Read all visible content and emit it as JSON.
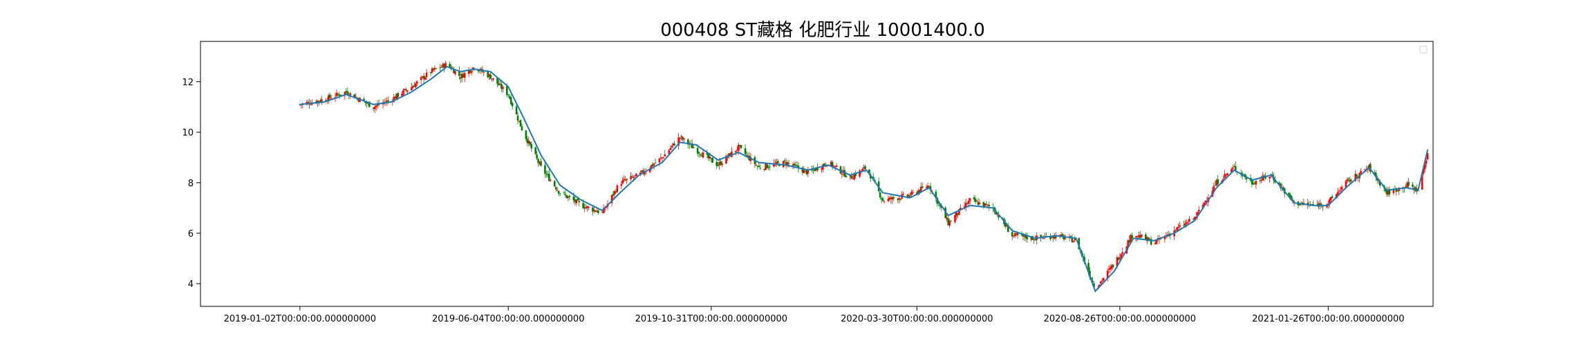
{
  "chart_data": {
    "type": "candlestick",
    "title": "000408 ST藏格 化肥行业 10001400.0",
    "xlabel": "",
    "ylabel": "",
    "ylim": [
      3.1,
      13.6
    ],
    "x_range": [
      "2018-10-21",
      "2021-04-13"
    ],
    "grid": false,
    "legend": "top-right (empty)",
    "colors": {
      "up": "#ff0000",
      "down": "#008000",
      "line": "#1f77b4",
      "axis": "#000000"
    },
    "x_ticks": [
      {
        "date": "2019-01-02",
        "label": "2019-01-02T00:00:00.000000000"
      },
      {
        "date": "2019-06-04",
        "label": "2019-06-04T00:00:00.000000000"
      },
      {
        "date": "2019-10-31",
        "label": "2019-10-31T00:00:00.000000000"
      },
      {
        "date": "2020-03-30",
        "label": "2020-03-30T00:00:00.000000000"
      },
      {
        "date": "2020-08-26",
        "label": "2020-08-26T00:00:00.000000000"
      },
      {
        "date": "2021-01-26",
        "label": "2021-01-26T00:00:00.000000000"
      }
    ],
    "y_ticks": [
      4,
      6,
      8,
      10,
      12
    ],
    "series": [
      {
        "kind": "close_trend",
        "points": [
          [
            "2019-01-02",
            11.1
          ],
          [
            "2019-01-20",
            11.3
          ],
          [
            "2019-02-05",
            11.6
          ],
          [
            "2019-02-25",
            11.0
          ],
          [
            "2019-03-10",
            11.3
          ],
          [
            "2019-03-25",
            11.8
          ],
          [
            "2019-04-08",
            12.4
          ],
          [
            "2019-04-20",
            12.7
          ],
          [
            "2019-04-30",
            12.2
          ],
          [
            "2019-05-10",
            12.6
          ],
          [
            "2019-05-22",
            12.2
          ],
          [
            "2019-06-04",
            11.5
          ],
          [
            "2019-06-15",
            10.0
          ],
          [
            "2019-06-28",
            8.6
          ],
          [
            "2019-07-12",
            7.6
          ],
          [
            "2019-07-28",
            7.1
          ],
          [
            "2019-08-12",
            6.8
          ],
          [
            "2019-08-25",
            8.0
          ],
          [
            "2019-09-08",
            8.3
          ],
          [
            "2019-09-25",
            9.0
          ],
          [
            "2019-10-08",
            9.8
          ],
          [
            "2019-10-20",
            9.3
          ],
          [
            "2019-11-05",
            8.7
          ],
          [
            "2019-11-20",
            9.4
          ],
          [
            "2019-12-05",
            8.6
          ],
          [
            "2019-12-25",
            8.8
          ],
          [
            "2020-01-10",
            8.4
          ],
          [
            "2020-01-25",
            8.8
          ],
          [
            "2020-02-10",
            8.2
          ],
          [
            "2020-02-22",
            8.6
          ],
          [
            "2020-03-05",
            7.3
          ],
          [
            "2020-03-25",
            7.5
          ],
          [
            "2020-04-08",
            7.9
          ],
          [
            "2020-04-22",
            6.4
          ],
          [
            "2020-05-08",
            7.3
          ],
          [
            "2020-05-25",
            7.0
          ],
          [
            "2020-06-08",
            5.9
          ],
          [
            "2020-06-25",
            5.8
          ],
          [
            "2020-07-10",
            5.9
          ],
          [
            "2020-07-25",
            5.7
          ],
          [
            "2020-08-08",
            3.8
          ],
          [
            "2020-08-22",
            4.8
          ],
          [
            "2020-09-05",
            6.0
          ],
          [
            "2020-09-20",
            5.6
          ],
          [
            "2020-10-05",
            6.1
          ],
          [
            "2020-10-20",
            6.6
          ],
          [
            "2020-11-05",
            8.0
          ],
          [
            "2020-11-18",
            8.6
          ],
          [
            "2020-12-01",
            8.0
          ],
          [
            "2020-12-15",
            8.3
          ],
          [
            "2021-01-01",
            7.2
          ],
          [
            "2021-01-15",
            7.1
          ],
          [
            "2021-01-26",
            7.2
          ],
          [
            "2021-02-08",
            8.0
          ],
          [
            "2021-02-25",
            8.6
          ],
          [
            "2021-03-10",
            7.6
          ],
          [
            "2021-03-25",
            7.9
          ],
          [
            "2021-04-02",
            7.7
          ],
          [
            "2021-04-09",
            9.2
          ]
        ]
      },
      {
        "kind": "moving_average",
        "color": "#1f77b4",
        "points": [
          [
            "2019-01-02",
            11.1
          ],
          [
            "2019-01-20",
            11.2
          ],
          [
            "2019-02-05",
            11.5
          ],
          [
            "2019-02-25",
            11.1
          ],
          [
            "2019-03-10",
            11.2
          ],
          [
            "2019-03-25",
            11.6
          ],
          [
            "2019-04-08",
            12.1
          ],
          [
            "2019-04-20",
            12.6
          ],
          [
            "2019-04-30",
            12.4
          ],
          [
            "2019-05-10",
            12.5
          ],
          [
            "2019-05-22",
            12.4
          ],
          [
            "2019-06-04",
            11.8
          ],
          [
            "2019-06-15",
            10.6
          ],
          [
            "2019-06-28",
            9.1
          ],
          [
            "2019-07-12",
            7.9
          ],
          [
            "2019-07-28",
            7.3
          ],
          [
            "2019-08-12",
            6.9
          ],
          [
            "2019-08-25",
            7.6
          ],
          [
            "2019-09-08",
            8.3
          ],
          [
            "2019-09-25",
            8.8
          ],
          [
            "2019-10-08",
            9.6
          ],
          [
            "2019-10-20",
            9.5
          ],
          [
            "2019-11-05",
            8.9
          ],
          [
            "2019-11-20",
            9.2
          ],
          [
            "2019-12-05",
            8.8
          ],
          [
            "2019-12-25",
            8.7
          ],
          [
            "2020-01-10",
            8.5
          ],
          [
            "2020-01-25",
            8.7
          ],
          [
            "2020-02-10",
            8.3
          ],
          [
            "2020-02-22",
            8.5
          ],
          [
            "2020-03-05",
            7.6
          ],
          [
            "2020-03-25",
            7.4
          ],
          [
            "2020-04-08",
            7.8
          ],
          [
            "2020-04-22",
            6.7
          ],
          [
            "2020-05-08",
            7.1
          ],
          [
            "2020-05-25",
            7.0
          ],
          [
            "2020-06-08",
            6.1
          ],
          [
            "2020-06-25",
            5.8
          ],
          [
            "2020-07-10",
            5.9
          ],
          [
            "2020-07-25",
            5.8
          ],
          [
            "2020-08-08",
            3.7
          ],
          [
            "2020-08-22",
            4.5
          ],
          [
            "2020-09-05",
            5.8
          ],
          [
            "2020-09-20",
            5.7
          ],
          [
            "2020-10-05",
            6.0
          ],
          [
            "2020-10-20",
            6.5
          ],
          [
            "2020-11-05",
            7.8
          ],
          [
            "2020-11-18",
            8.5
          ],
          [
            "2020-12-01",
            8.1
          ],
          [
            "2020-12-15",
            8.3
          ],
          [
            "2021-01-01",
            7.2
          ],
          [
            "2021-01-15",
            7.1
          ],
          [
            "2021-01-26",
            7.1
          ],
          [
            "2021-02-08",
            7.8
          ],
          [
            "2021-02-25",
            8.6
          ],
          [
            "2021-03-10",
            7.7
          ],
          [
            "2021-03-25",
            7.8
          ],
          [
            "2021-04-02",
            7.7
          ],
          [
            "2021-04-09",
            9.3
          ]
        ]
      }
    ]
  }
}
